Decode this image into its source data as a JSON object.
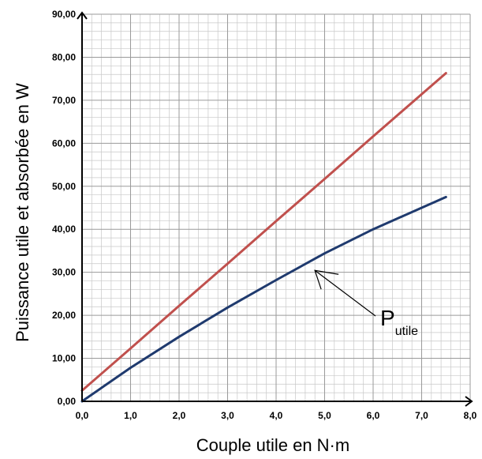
{
  "chart_data": {
    "type": "line",
    "xlabel": "Couple utile en N·m",
    "ylabel": "Puissance utile et absorbée en W",
    "xlim": [
      0,
      8
    ],
    "ylim": [
      0,
      90
    ],
    "x_ticks": [
      "0,0",
      "1,0",
      "2,0",
      "3,0",
      "4,0",
      "5,0",
      "6,0",
      "7,0",
      "8,0"
    ],
    "y_ticks": [
      "0,00",
      "10,00",
      "20,00",
      "30,00",
      "40,00",
      "50,00",
      "60,00",
      "70,00",
      "80,00",
      "90,00"
    ],
    "grid": true,
    "series": [
      {
        "color": "#c0504d",
        "x": [
          0,
          1,
          2,
          3,
          4,
          5,
          6,
          7,
          7.5
        ],
        "y": [
          2.5,
          12.3,
          22.2,
          32.0,
          41.9,
          51.7,
          61.6,
          71.4,
          76.3
        ]
      },
      {
        "name": "P",
        "color": "#1f3a6e",
        "x": [
          0,
          1,
          2,
          3,
          4,
          5,
          6,
          7,
          7.5
        ],
        "y": [
          0,
          7.8,
          15.0,
          21.8,
          28.2,
          34.4,
          40.0,
          45.0,
          47.5
        ]
      }
    ],
    "annotations": [
      {
        "text": "P",
        "subscript": "utile",
        "points_to": {
          "x": 4.75,
          "y": 31
        }
      }
    ]
  }
}
